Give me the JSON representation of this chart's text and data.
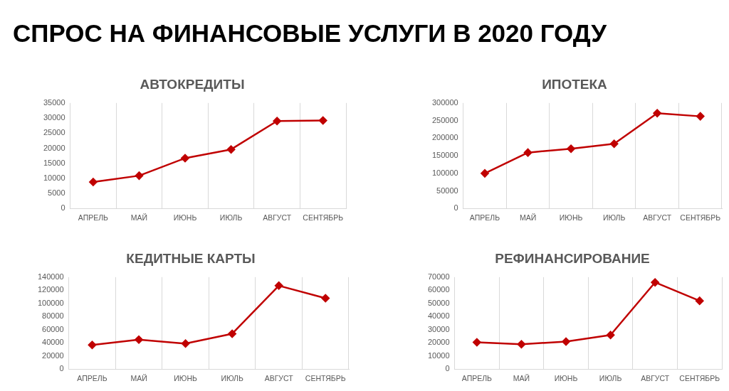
{
  "chart_data": [
    {
      "type": "other",
      "title": "СПРОС НА ФИНАНСОВЫЕ УСЛУГИ В 2020 ГОДУ"
    },
    {
      "type": "line",
      "title": "АВТОКРЕДИТЫ",
      "categories": [
        "АПРЕЛЬ",
        "МАЙ",
        "ИЮНЬ",
        "ИЮЛЬ",
        "АВГУСТ",
        "СЕНТЯБРЬ"
      ],
      "values": [
        8800,
        10900,
        16700,
        19600,
        29000,
        29200
      ],
      "color": "#c00000",
      "ylim": [
        0,
        35000
      ],
      "yticks": [
        0,
        5000,
        10000,
        15000,
        20000,
        25000,
        30000,
        35000
      ],
      "grid": "x",
      "marker": "diamond"
    },
    {
      "type": "line",
      "title": "ИПОТЕКА",
      "categories": [
        "АПРЕЛЬ",
        "МАЙ",
        "ИЮНЬ",
        "ИЮЛЬ",
        "АВГУСТ",
        "СЕНТЯБРЬ"
      ],
      "values": [
        100000,
        159000,
        170000,
        184000,
        271000,
        262000
      ],
      "color": "#c00000",
      "ylim": [
        0,
        300000
      ],
      "yticks": [
        0,
        50000,
        100000,
        150000,
        200000,
        250000,
        300000
      ],
      "grid": "x",
      "marker": "diamond"
    },
    {
      "type": "line",
      "title": "КЕДИТНЫЕ КАРТЫ",
      "categories": [
        "АПРЕЛЬ",
        "МАЙ",
        "ИЮНЬ",
        "ИЮЛЬ",
        "АВГУСТ",
        "СЕНТЯБРЬ"
      ],
      "values": [
        37000,
        45000,
        39000,
        54000,
        127000,
        108000
      ],
      "color": "#c00000",
      "ylim": [
        0,
        140000
      ],
      "yticks": [
        0,
        20000,
        40000,
        60000,
        80000,
        100000,
        120000,
        140000
      ],
      "grid": "x",
      "marker": "diamond"
    },
    {
      "type": "line",
      "title": "РЕФИНАНСИРОВАНИЕ",
      "categories": [
        "АПРЕЛЬ",
        "МАЙ",
        "ИЮНЬ",
        "ИЮЛЬ",
        "АВГУСТ",
        "СЕНТЯБРЬ"
      ],
      "values": [
        20500,
        19000,
        21000,
        26000,
        66000,
        52000
      ],
      "color": "#c00000",
      "ylim": [
        0,
        70000
      ],
      "yticks": [
        0,
        10000,
        20000,
        30000,
        40000,
        50000,
        60000,
        70000
      ],
      "grid": "x",
      "marker": "diamond"
    }
  ]
}
